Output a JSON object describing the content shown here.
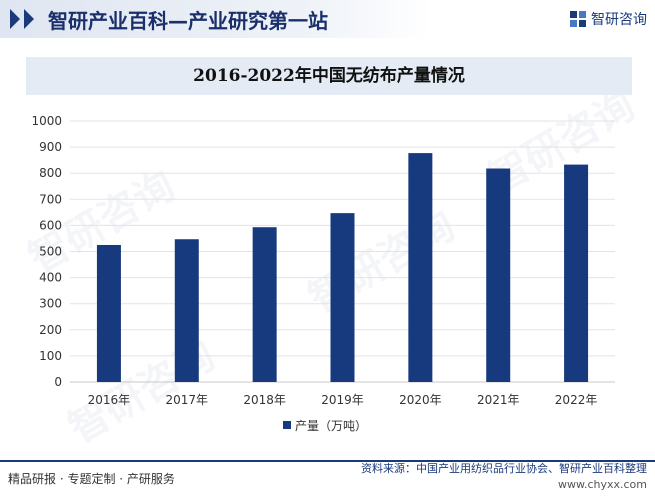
{
  "header": {
    "title": "智研产业百科—产业研究第一站",
    "brand": "智研咨询",
    "brand_icon": "chyxx-logo-icon"
  },
  "watermark": {
    "text": "智研咨询"
  },
  "chart_data": {
    "type": "bar",
    "title": "2016-2022年中国无纺布产量情况",
    "categories": [
      "2016年",
      "2017年",
      "2018年",
      "2019年",
      "2020年",
      "2021年",
      "2022年"
    ],
    "series": [
      {
        "name": "产量（万吨）",
        "values": [
          525,
          547,
          593,
          647,
          877,
          818,
          833
        ],
        "color": "#173a7e"
      }
    ],
    "ylim": [
      0,
      1000
    ],
    "yticks": [
      0,
      100,
      200,
      300,
      400,
      500,
      600,
      700,
      800,
      900,
      1000
    ],
    "grid": true,
    "legend_position": "bottom"
  },
  "footer": {
    "left": "精品研报 · 专题定制 · 产研服务",
    "source": "资料来源：中国产业用纺织品行业协会、智研产业百科整理",
    "url": "www.chyxx.com"
  }
}
